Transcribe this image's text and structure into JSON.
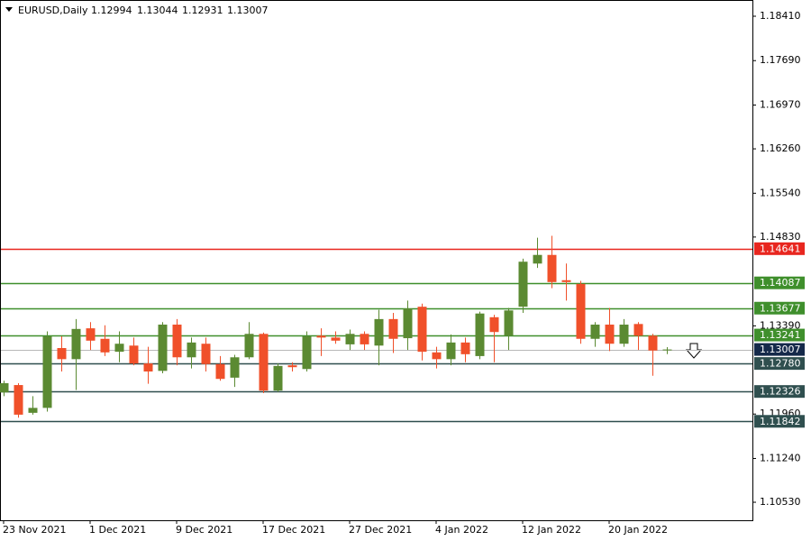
{
  "chart_data": {
    "type": "candlestick",
    "symbol": "EURUSD,Daily",
    "header_values": [
      1.12994,
      1.13044,
      1.12931,
      1.13007
    ],
    "categories": [
      "23 Nov 2021",
      null,
      null,
      null,
      null,
      null,
      "1 Dec 2021",
      null,
      null,
      null,
      null,
      null,
      "9 Dec 2021",
      null,
      null,
      null,
      null,
      null,
      "17 Dec 2021",
      null,
      null,
      null,
      null,
      null,
      "27 Dec 2021",
      null,
      null,
      null,
      null,
      null,
      "4 Jan 2022",
      null,
      null,
      null,
      null,
      null,
      "12 Jan 2022",
      null,
      null,
      null,
      null,
      null,
      "20 Jan 2022",
      null,
      null,
      null,
      null
    ],
    "open": [
      1.1231,
      1.1243,
      1.1198,
      1.1206,
      1.1303,
      1.1285,
      1.1335,
      1.1318,
      1.1297,
      1.1307,
      1.1278,
      1.1266,
      1.1341,
      1.1288,
      1.131,
      1.1277,
      1.1255,
      1.1288,
      1.1326,
      1.1234,
      1.1275,
      1.1269,
      1.1323,
      1.132,
      1.1309,
      1.1326,
      1.1307,
      1.135,
      1.1319,
      1.137,
      1.1296,
      1.1285,
      1.1312,
      1.129,
      1.1353,
      1.1323,
      1.137,
      1.144,
      1.1454,
      1.1413,
      1.1407,
      1.1318,
      1.1341,
      1.131,
      1.1342,
      1.1323,
      1.12994
    ],
    "high": [
      1.125,
      1.1246,
      1.1225,
      1.133,
      1.1322,
      1.135,
      1.1345,
      1.134,
      1.133,
      1.132,
      1.1305,
      1.1345,
      1.135,
      1.132,
      1.132,
      1.129,
      1.1292,
      1.1345,
      1.1328,
      1.1278,
      1.128,
      1.133,
      1.1335,
      1.133,
      1.1333,
      1.133,
      1.1365,
      1.136,
      1.138,
      1.1375,
      1.1305,
      1.1325,
      1.132,
      1.1362,
      1.1357,
      1.1368,
      1.1448,
      1.1482,
      1.1485,
      1.144,
      1.1412,
      1.1345,
      1.1368,
      1.135,
      1.1345,
      1.1326,
      1.13044
    ],
    "low": [
      1.1225,
      1.119,
      1.1195,
      1.12,
      1.1265,
      1.1235,
      1.13,
      1.129,
      1.128,
      1.1275,
      1.1245,
      1.1262,
      1.1275,
      1.127,
      1.1265,
      1.125,
      1.124,
      1.1285,
      1.123,
      1.1232,
      1.1265,
      1.1265,
      1.129,
      1.131,
      1.13,
      1.13,
      1.1275,
      1.1295,
      1.13,
      1.1283,
      1.127,
      1.1275,
      1.128,
      1.1285,
      1.128,
      1.13,
      1.136,
      1.1433,
      1.14,
      1.138,
      1.131,
      1.1305,
      1.1298,
      1.1305,
      1.13,
      1.1258,
      1.12931
    ],
    "close": [
      1.1246,
      1.1195,
      1.1206,
      1.1322,
      1.1285,
      1.1334,
      1.1315,
      1.1296,
      1.131,
      1.1278,
      1.1265,
      1.1341,
      1.1288,
      1.1312,
      1.1277,
      1.1253,
      1.1288,
      1.1326,
      1.1234,
      1.1274,
      1.1272,
      1.1322,
      1.132,
      1.1315,
      1.1326,
      1.1309,
      1.135,
      1.1318,
      1.1367,
      1.1297,
      1.1285,
      1.1312,
      1.1293,
      1.1359,
      1.1329,
      1.1364,
      1.1443,
      1.1454,
      1.141,
      1.141,
      1.1318,
      1.1341,
      1.131,
      1.1341,
      1.1323,
      1.1299,
      1.13007
    ],
    "up_color": "#5b8a32",
    "down_color": "#f0502a",
    "ylim": [
      1.10238,
      1.18673
    ],
    "yticks": [
      {
        "value": 1.1841,
        "label": "1.18410"
      },
      {
        "value": 1.1769,
        "label": "1.17690"
      },
      {
        "value": 1.1697,
        "label": "1.16970"
      },
      {
        "value": 1.1626,
        "label": "1.16260"
      },
      {
        "value": 1.1554,
        "label": "1.15540"
      },
      {
        "value": 1.1483,
        "label": "1.14830"
      },
      {
        "value": 1.1339,
        "label": "1.13390"
      },
      {
        "value": 1.1196,
        "label": "1.11960"
      },
      {
        "value": 1.1124,
        "label": "1.11240"
      },
      {
        "value": 1.1053,
        "label": "1.10530"
      }
    ],
    "levels": [
      {
        "value": 1.14641,
        "color": "#e8261f"
      },
      {
        "value": 1.14087,
        "color": "#3f8f2c"
      },
      {
        "value": 1.13677,
        "color": "#3f8f2c"
      },
      {
        "value": 1.13241,
        "color": "#3f8f2c"
      },
      {
        "value": 1.13007,
        "color": "#b8b8b8",
        "box_color": "#15294a"
      },
      {
        "value": 1.1278,
        "label": "1.12780",
        "color": "#2f4f4f"
      },
      {
        "value": 1.12326,
        "color": "#2f4f4f"
      },
      {
        "value": 1.11842,
        "color": "#2f4f4f"
      }
    ]
  }
}
